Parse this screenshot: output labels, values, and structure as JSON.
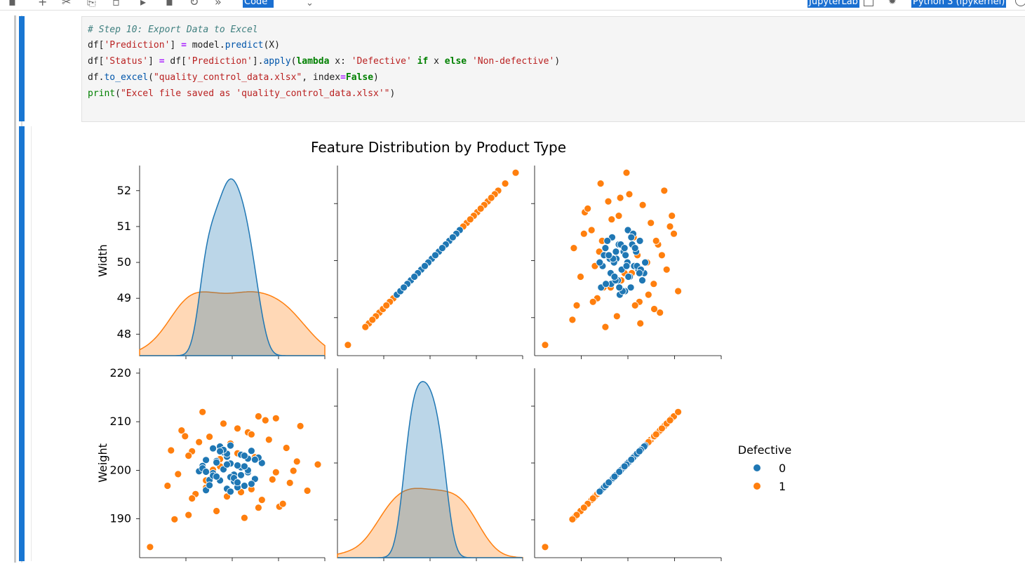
{
  "toolbar": {
    "cell_type": "Code",
    "jupyterlab_label": "JupyterLab",
    "kernel_label": "Python 3 (ipykernel)",
    "icons": [
      "save-icon",
      "add-cell-icon",
      "cut-icon",
      "copy-icon",
      "paste-icon",
      "run-icon",
      "stop-icon",
      "restart-icon",
      "fast-forward-icon",
      "chevron-down-icon",
      "external-link-icon",
      "debug-icon",
      "kernel-status-icon"
    ]
  },
  "code": {
    "lines": [
      "# Step 10: Export Data to Excel",
      "df['Prediction'] = model.predict(X)",
      "df['Status'] = df['Prediction'].apply(lambda x: 'Defective' if x else 'Non-defective')",
      "df.to_excel(\"quality_control_data.xlsx\", index=False)",
      "print(\"Excel file saved as 'quality_control_data.xlsx'\")"
    ]
  },
  "chart_data": {
    "type": "scatter",
    "title": "Feature Distribution by Product Type",
    "variables": [
      "Width",
      "Weight"
    ],
    "width_ticks": [
      48,
      49,
      50,
      51,
      52
    ],
    "weight_ticks": [
      190,
      200,
      210,
      220
    ],
    "width_range": [
      47.4,
      52.7
    ],
    "weight_range": [
      182,
      221
    ],
    "legend": {
      "title": "Defective",
      "entries": [
        "0",
        "1"
      ],
      "position": "right"
    },
    "colors": {
      "0": "#1f77b4",
      "1": "#ff7f0e"
    },
    "series": [
      {
        "name": "0",
        "width": [
          50.9,
          50.7,
          50.6,
          50.5,
          50.5,
          50.4,
          50.3,
          50.3,
          50.2,
          50.2,
          50.1,
          50.0,
          50.0,
          49.9,
          49.9,
          49.8,
          49.8,
          49.7,
          49.6,
          49.5,
          49.5,
          49.4,
          49.3,
          49.3,
          49.2,
          49.1,
          50.6,
          50.4,
          50.2,
          50.0,
          49.7,
          49.5,
          49.2,
          50.8,
          50.1,
          49.9,
          50.3,
          49.6,
          49.4,
          50.5,
          49.8,
          50.1,
          50.7,
          49.3,
          50.0,
          49.7,
          50.2,
          49.9,
          50.4,
          49.6
        ],
        "weight": [
          201.5,
          198.2,
          204.0,
          199.6,
          202.4,
          196.8,
          200.6,
          203.2,
          197.4,
          201.0,
          199.1,
          205.1,
          198.6,
          202.8,
          196.2,
          200.2,
          203.7,
          197.9,
          201.9,
          199.4,
          204.5,
          198.0,
          202.1,
          195.9,
          200.9,
          199.8,
          197.2,
          203.0,
          196.5,
          201.4,
          204.9,
          198.9,
          200.4,
          202.6,
          197.7,
          203.4,
          199.0,
          201.6,
          196.9,
          200.0,
          204.2,
          198.4,
          202.2,
          199.7,
          195.6,
          203.9,
          197.5,
          201.2,
          200.8,
          198.7
        ]
      },
      {
        "name": "1",
        "width": [
          52.5,
          52.2,
          52.0,
          51.7,
          51.6,
          51.4,
          51.3,
          51.3,
          51.1,
          50.9,
          50.8,
          50.7,
          50.6,
          50.5,
          50.4,
          50.2,
          50.1,
          50.0,
          49.9,
          49.8,
          49.7,
          49.6,
          49.4,
          49.3,
          49.2,
          49.0,
          48.9,
          48.8,
          48.6,
          48.5,
          48.3,
          48.2,
          47.7,
          51.9,
          51.5,
          51.0,
          50.3,
          49.5,
          48.7,
          48.4,
          50.8,
          49.1,
          51.2,
          50.6,
          48.9,
          49.7,
          51.8,
          50.2,
          48.8,
          49.3
        ],
        "weight": [
          201.2,
          195.8,
          209.1,
          197.4,
          204.6,
          192.5,
          210.7,
          199.6,
          206.3,
          193.9,
          211.1,
          202.7,
          196.1,
          207.8,
          190.2,
          203.5,
          198.7,
          205.5,
          194.6,
          209.6,
          200.8,
          191.6,
          206.9,
          197.9,
          212.0,
          195.1,
          203.9,
          190.8,
          208.2,
          199.2,
          204.1,
          196.8,
          184.2,
          201.8,
          193.1,
          210.3,
          195.5,
          200.1,
          207.0,
          189.9,
          192.3,
          205.8,
          198.1,
          207.4,
          194.2,
          202.3,
          199.9,
          208.6,
          203.0,
          196.4
        ]
      }
    ]
  }
}
